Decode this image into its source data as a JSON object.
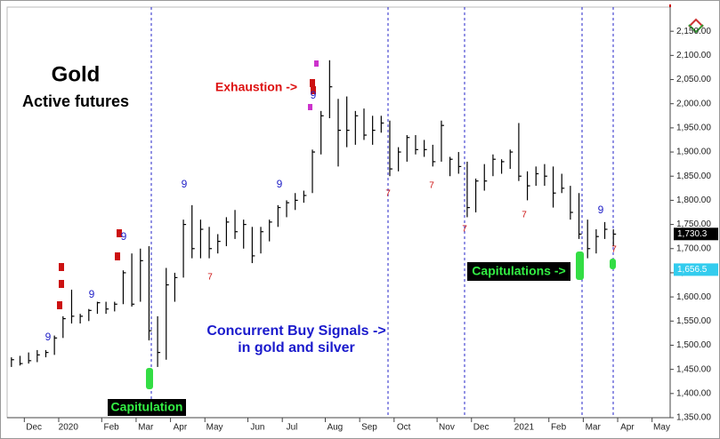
{
  "chart_data": {
    "type": "ohlc",
    "title": "Gold",
    "subtitle": "Active futures",
    "categories": [
      null,
      null,
      "Dec",
      null,
      null,
      null,
      "2020",
      null,
      null,
      null,
      null,
      "Feb",
      null,
      null,
      null,
      "Mar",
      null,
      null,
      null,
      "Apr",
      null,
      null,
      null,
      "May",
      null,
      null,
      null,
      null,
      "Jun",
      null,
      null,
      null,
      "Jul",
      null,
      null,
      null,
      null,
      "Aug",
      null,
      null,
      null,
      "Sep",
      null,
      null,
      null,
      "Oct",
      null,
      null,
      null,
      null,
      "Nov",
      null,
      null,
      null,
      "Dec",
      null,
      null,
      null,
      null,
      "2021",
      null,
      null,
      null,
      "Feb",
      null,
      null,
      null,
      "Mar",
      null,
      null,
      null,
      "Apr",
      null,
      null,
      null,
      "May",
      null
    ],
    "high": [
      1475,
      1478,
      1485,
      1490,
      1490,
      1520,
      1560,
      1615,
      1565,
      1575,
      1590,
      1590,
      1590,
      1655,
      1690,
      1700,
      1705,
      1560,
      1660,
      1650,
      1760,
      1790,
      1760,
      1745,
      1730,
      1765,
      1780,
      1760,
      1745,
      1745,
      1760,
      1790,
      1800,
      1815,
      1820,
      1905,
      1985,
      2090,
      2010,
      2015,
      1985,
      1990,
      1975,
      1975,
      1965,
      1910,
      1935,
      1935,
      1925,
      1915,
      1965,
      1890,
      1900,
      1880,
      1845,
      1875,
      1895,
      1885,
      1905,
      1960,
      1860,
      1870,
      1875,
      1870,
      1855,
      1830,
      1815,
      1760,
      1740,
      1755,
      1740,
      null,
      null,
      null,
      null,
      null,
      null
    ],
    "low": [
      1455,
      1458,
      1462,
      1465,
      1475,
      1480,
      1515,
      1545,
      1545,
      1550,
      1565,
      1565,
      1570,
      1585,
      1580,
      1590,
      1510,
      1455,
      1470,
      1590,
      1640,
      1680,
      1680,
      1680,
      1690,
      1705,
      1720,
      1700,
      1670,
      1690,
      1715,
      1745,
      1765,
      1780,
      1795,
      1815,
      1895,
      1970,
      1870,
      1910,
      1915,
      1925,
      1915,
      1940,
      1850,
      1860,
      1880,
      1895,
      1890,
      1870,
      1880,
      1850,
      1855,
      1765,
      1775,
      1820,
      1850,
      1855,
      1865,
      1840,
      1800,
      1830,
      1830,
      1785,
      1815,
      1760,
      1720,
      1680,
      1690,
      1720,
      1705,
      null,
      null,
      null,
      null,
      null,
      null
    ],
    "close": [
      1470,
      1462,
      1468,
      1480,
      1485,
      1515,
      1555,
      1560,
      1560,
      1572,
      1588,
      1575,
      1585,
      1650,
      1585,
      1675,
      1530,
      1485,
      1625,
      1640,
      1750,
      1700,
      1740,
      1700,
      1715,
      1755,
      1735,
      1750,
      1685,
      1735,
      1755,
      1785,
      1795,
      1800,
      1810,
      1900,
      1975,
      2035,
      1945,
      1945,
      1975,
      1935,
      1945,
      1960,
      1865,
      1900,
      1930,
      1905,
      1905,
      1880,
      1955,
      1885,
      1870,
      1785,
      1840,
      1840,
      1885,
      1880,
      1900,
      1850,
      1830,
      1855,
      1850,
      1815,
      1825,
      1775,
      1730,
      1700,
      1725,
      1740,
      1730,
      null,
      null,
      null,
      null,
      null,
      null
    ],
    "color": "#000000",
    "ylim": [
      1350,
      2200
    ],
    "yticks": [
      {
        "value": 1350,
        "label": "1,350.00"
      },
      {
        "value": 1400,
        "label": "1,400.00"
      },
      {
        "value": 1450,
        "label": "1,450.00"
      },
      {
        "value": 1500,
        "label": "1,500.00"
      },
      {
        "value": 1550,
        "label": "1,550.00"
      },
      {
        "value": 1600,
        "label": "1,600.00"
      },
      {
        "value": 1650,
        "label": "1,650.00"
      },
      {
        "value": 1700,
        "label": "1,700.00"
      },
      {
        "value": 1750,
        "label": "1,750.00"
      },
      {
        "value": 1800,
        "label": "1,800.00"
      },
      {
        "value": 1850,
        "label": "1,850.00"
      },
      {
        "value": 1900,
        "label": "1,900.00"
      },
      {
        "value": 1950,
        "label": "1,950.00"
      },
      {
        "value": 2000,
        "label": "2,000.00"
      },
      {
        "value": 2050,
        "label": "2,050.00"
      },
      {
        "value": 2100,
        "label": "2,100.00"
      },
      {
        "value": 2150,
        "label": "2,150.00"
      }
    ],
    "price_flags": [
      {
        "value": 1730.3,
        "label": "1,730.3",
        "color": "#000000"
      },
      {
        "value": 1656.5,
        "label": "1,656.5",
        "color": "#33ccee"
      }
    ],
    "annotations": {
      "exhaustion": "Exhaustion ->",
      "buy_signals": [
        "Concurrent Buy Signals ->",
        "in gold and silver"
      ],
      "capitulations": "Capitulations ->",
      "capitulation": "Capitulation"
    },
    "counts": [
      {
        "text": "9",
        "color": "#2424c8"
      },
      {
        "text": "9",
        "color": "#2424c8"
      },
      {
        "text": "9",
        "color": "#2424c8"
      },
      {
        "text": "9",
        "color": "#2424c8"
      },
      {
        "text": "9",
        "color": "#2424c8"
      },
      {
        "text": "9",
        "color": "#2424c8"
      },
      {
        "text": "9",
        "color": "#2424c8"
      },
      {
        "text": "7",
        "color": "#cc1111"
      },
      {
        "text": "7",
        "color": "#cc1111"
      },
      {
        "text": "7",
        "color": "#cc1111"
      },
      {
        "text": "7",
        "color": "#cc1111"
      },
      {
        "text": "7",
        "color": "#cc1111"
      },
      {
        "text": "7",
        "color": "#cc1111"
      }
    ]
  }
}
